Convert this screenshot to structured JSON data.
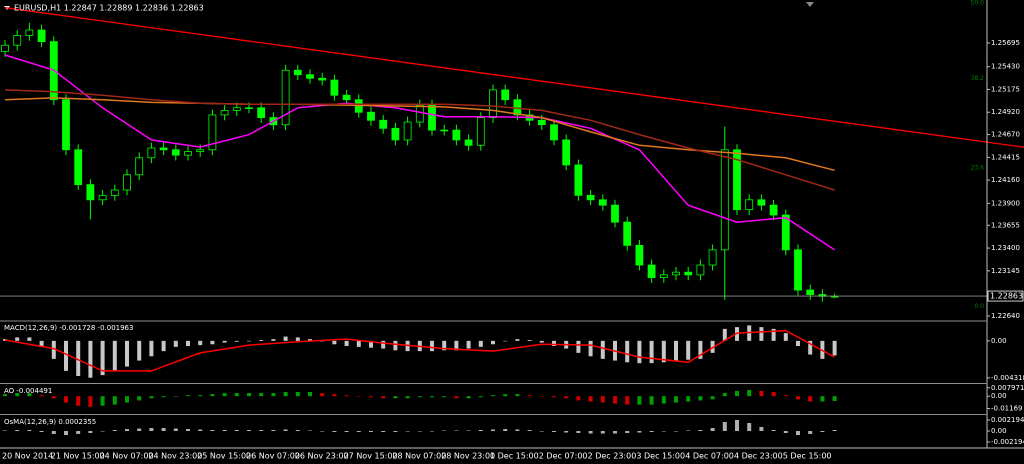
{
  "chart_data": [
    {
      "type": "candlestick",
      "title": "EURUSD,H1  1.22847 1.22889 1.22836 1.22863",
      "categories": [
        "20 Nov 2014",
        null,
        null,
        null,
        "21 Nov 15:00",
        null,
        null,
        null,
        "24 Nov 07:00",
        null,
        null,
        null,
        "24 Nov 23:00",
        null,
        null,
        null,
        "25 Nov 15:00",
        null,
        null,
        null,
        "26 Nov 07:00",
        null,
        null,
        null,
        "26 Nov 23:00",
        null,
        null,
        null,
        "27 Nov 15:00",
        null,
        null,
        null,
        "28 Nov 07:00",
        null,
        null,
        null,
        "28 Nov 23:00",
        null,
        null,
        null,
        "1 Dec 15:00",
        null,
        null,
        null,
        "2 Dec 07:00",
        null,
        null,
        null,
        "2 Dec 23:00",
        null,
        null,
        null,
        "3 Dec 15:00",
        null,
        null,
        null,
        "4 Dec 07:00",
        null,
        null,
        null,
        "4 Dec 23:00",
        null,
        null,
        null,
        "5 Dec 15:00",
        null,
        null,
        null,
        null
      ],
      "open": [
        1.256,
        1.2567,
        1.2578,
        1.2584,
        1.2571,
        1.2506,
        1.245,
        1.2411,
        1.2394,
        1.2399,
        1.2405,
        1.2422,
        1.2441,
        1.2452,
        1.245,
        1.2444,
        1.2448,
        1.245,
        1.2489,
        1.2494,
        1.2497,
        1.2497,
        1.2486,
        1.2478,
        1.2539,
        1.2534,
        1.253,
        1.2528,
        1.2511,
        1.2506,
        1.2492,
        1.2483,
        1.2474,
        1.2461,
        1.2481,
        1.25,
        1.2472,
        1.2472,
        1.2461,
        1.2455,
        1.2486,
        1.2517,
        1.2506,
        1.2489,
        1.2483,
        1.2478,
        1.2461,
        1.2433,
        1.2399,
        1.2394,
        1.2388,
        1.2369,
        1.2343,
        1.2321,
        1.2307,
        1.231,
        1.2313,
        1.231,
        1.2321,
        1.2338,
        1.245,
        1.2383,
        1.2394,
        1.2388,
        1.2377,
        1.2338,
        1.2293,
        1.2288,
        1.2286
      ],
      "high": [
        1.2573,
        1.2584,
        1.2592,
        1.259,
        1.2577,
        1.2512,
        1.2456,
        1.2417,
        1.2405,
        1.2411,
        1.2428,
        1.2447,
        1.2458,
        1.2458,
        1.2456,
        1.2454,
        1.2456,
        1.2495,
        1.25,
        1.2503,
        1.2503,
        1.2503,
        1.2492,
        1.2545,
        1.2545,
        1.254,
        1.2536,
        1.2534,
        1.2517,
        1.2512,
        1.2498,
        1.2489,
        1.248,
        1.2487,
        1.2506,
        1.2506,
        1.2478,
        1.2478,
        1.2467,
        1.2492,
        1.2523,
        1.2523,
        1.2512,
        1.2495,
        1.2489,
        1.2484,
        1.2467,
        1.2439,
        1.2405,
        1.24,
        1.2394,
        1.2375,
        1.2349,
        1.2327,
        1.2316,
        1.2319,
        1.2319,
        1.2327,
        1.2344,
        1.2476,
        1.2456,
        1.24,
        1.24,
        1.2394,
        1.2383,
        1.2344,
        1.2299,
        1.2294,
        1.2289
      ],
      "low": [
        1.2554,
        1.2561,
        1.2572,
        1.2565,
        1.25,
        1.2444,
        1.2405,
        1.2372,
        1.2388,
        1.2393,
        1.2399,
        1.2416,
        1.2435,
        1.2444,
        1.2438,
        1.2438,
        1.2442,
        1.2444,
        1.2483,
        1.2488,
        1.2491,
        1.248,
        1.2472,
        1.2472,
        1.2528,
        1.2524,
        1.2522,
        1.2505,
        1.25,
        1.2486,
        1.2477,
        1.2468,
        1.2455,
        1.2455,
        1.2475,
        1.2466,
        1.2466,
        1.2455,
        1.2449,
        1.2449,
        1.248,
        1.25,
        1.2483,
        1.2477,
        1.2472,
        1.2455,
        1.2427,
        1.2393,
        1.2388,
        1.2382,
        1.2363,
        1.2337,
        1.2315,
        1.2301,
        1.2301,
        1.2304,
        1.2304,
        1.2304,
        1.2315,
        1.2282,
        1.2377,
        1.2377,
        1.2382,
        1.2371,
        1.2332,
        1.2287,
        1.2282,
        1.228,
        1.2284
      ],
      "close": [
        1.2567,
        1.2578,
        1.2584,
        1.2571,
        1.2506,
        1.245,
        1.2411,
        1.2394,
        1.2399,
        1.2405,
        1.2422,
        1.2441,
        1.2452,
        1.245,
        1.2444,
        1.2448,
        1.245,
        1.2489,
        1.2494,
        1.2497,
        1.2497,
        1.2486,
        1.2478,
        1.2539,
        1.2534,
        1.253,
        1.2528,
        1.2511,
        1.2506,
        1.2492,
        1.2483,
        1.2474,
        1.2461,
        1.2481,
        1.25,
        1.2472,
        1.2472,
        1.2461,
        1.2455,
        1.2486,
        1.2517,
        1.2506,
        1.2489,
        1.2483,
        1.2478,
        1.2461,
        1.2433,
        1.2399,
        1.2394,
        1.2388,
        1.2369,
        1.2343,
        1.2321,
        1.2307,
        1.231,
        1.2313,
        1.231,
        1.2321,
        1.2338,
        1.245,
        1.2383,
        1.2394,
        1.2388,
        1.2377,
        1.2338,
        1.2293,
        1.2288,
        1.2286,
        1.2286
      ],
      "color": "#00ff00",
      "lines": [
        {
          "color": "#ff00ff",
          "x": [
            0,
            4,
            8,
            12,
            16,
            20,
            24,
            28,
            32,
            36,
            40,
            44,
            48,
            52,
            56,
            60,
            64,
            68
          ],
          "values": [
            1.2556,
            1.2539,
            1.2497,
            1.2461,
            1.2453,
            1.2467,
            1.2497,
            1.2502,
            1.2497,
            1.2487,
            1.2487,
            1.2486,
            1.2474,
            1.245,
            1.2388,
            1.2369,
            1.2374,
            1.2338
          ]
        },
        {
          "color": "#e07820",
          "x": [
            0,
            4,
            8,
            12,
            16,
            20,
            24,
            28,
            32,
            36,
            40,
            44,
            48,
            52,
            56,
            60,
            64,
            68
          ],
          "values": [
            1.2506,
            1.2508,
            1.2506,
            1.2503,
            1.2502,
            1.2501,
            1.2501,
            1.25,
            1.2499,
            1.2498,
            1.2494,
            1.2486,
            1.247,
            1.2455,
            1.245,
            1.2446,
            1.2441,
            1.2427
          ]
        },
        {
          "color": "#a02818",
          "x": [
            0,
            4,
            8,
            12,
            16,
            20,
            24,
            28,
            32,
            36,
            40,
            44,
            48,
            52,
            56,
            60,
            64,
            68
          ],
          "values": [
            1.2517,
            1.2515,
            1.2511,
            1.2506,
            1.2502,
            1.2501,
            1.2501,
            1.2501,
            1.2501,
            1.2501,
            1.2499,
            1.2494,
            1.2483,
            1.2467,
            1.2452,
            1.2439,
            1.2422,
            1.2405
          ]
        }
      ],
      "trendline": {
        "color": "#ff0000",
        "x": [
          0,
          84
        ],
        "values": [
          1.2609,
          1.2452
        ]
      },
      "levels": [
        {
          "label": "50.0",
          "value": 1.261
        },
        {
          "label": "38.2",
          "value": 1.2525
        },
        {
          "label": "23.6",
          "value": 1.2425
        },
        {
          "label": "0.0",
          "value": 1.227
        }
      ],
      "level_color": "#008000",
      "last_price": 1.22863,
      "ylim": [
        1.22595,
        1.26176
      ],
      "yticks": [
        1.25695,
        {
          "value": 1.2543,
          "label": "1.25430"
        },
        1.25175,
        {
          "value": 1.2492,
          "label": "1.24920"
        },
        {
          "value": 1.2467,
          "label": "1.24670"
        },
        1.24415,
        {
          "value": 1.2416,
          "label": "1.24160"
        },
        {
          "value": 1.239,
          "label": "1.23900"
        },
        1.23655,
        {
          "value": 1.234,
          "label": "1.23400"
        },
        1.23145,
        {
          "value": 1.2264,
          "label": "1.22640"
        }
      ],
      "grid": true
    },
    {
      "type": "bar",
      "title": "MACD(12,26,9) -0.001728 -0.001963",
      "values": [
        0.0002,
        0.0004,
        0.0004,
        -0.0006,
        -0.0021,
        -0.0035,
        -0.0041,
        -0.0043,
        -0.004,
        -0.0035,
        -0.003,
        -0.0023,
        -0.0018,
        -0.0012,
        -0.0007,
        -0.0006,
        -0.0005,
        -0.0004,
        -0.0002,
        -0.0001,
        0,
        0.0001,
        0.0002,
        0.0005,
        0.0004,
        0.0002,
        0,
        -0.0004,
        -0.0006,
        -0.0007,
        -0.0008,
        -0.0009,
        -0.0011,
        -0.0012,
        -0.0012,
        -0.0012,
        -0.0011,
        -0.0011,
        -0.0009,
        -0.0007,
        -0.0004,
        0,
        0.0002,
        0.0001,
        -0.0002,
        -0.0006,
        -0.0009,
        -0.0014,
        -0.0018,
        -0.0021,
        -0.0023,
        -0.0025,
        -0.0026,
        -0.0026,
        -0.0025,
        -0.0023,
        -0.0022,
        -0.0021,
        -0.0014,
        0.0014,
        0.0016,
        0.0018,
        0.0016,
        0.0014,
        0.0009,
        -0.0006,
        -0.0016,
        -0.0021,
        -0.0017
      ],
      "color": "#c8c8c8",
      "signal": {
        "color": "#ff0000",
        "x": [
          0,
          4,
          8,
          12,
          16,
          20,
          24,
          28,
          32,
          36,
          40,
          44,
          48,
          52,
          56,
          60,
          64,
          68
        ],
        "values": [
          0.0001,
          -0.0009,
          -0.0035,
          -0.0035,
          -0.0014,
          -0.0005,
          -0.0001,
          0.0002,
          -0.0004,
          -0.0009,
          -0.0012,
          -0.0004,
          -0.0005,
          -0.0019,
          -0.0025,
          0.0009,
          0.0012,
          -0.0019
        ]
      },
      "ylim": [
        -0.0048,
        0.0022
      ],
      "yticks": [
        {
          "value": 0,
          "label": "0.00"
        },
        -0.004318
      ]
    },
    {
      "type": "bar",
      "title": "AO -0.004491",
      "values": [
        0.002,
        0.003,
        0.003,
        0.001,
        -0.002,
        -0.006,
        -0.009,
        -0.01,
        -0.009,
        -0.008,
        -0.006,
        -0.004,
        -0.002,
        -0.001,
        0,
        0.001,
        0.001,
        0.002,
        0.003,
        0.003,
        0.003,
        0.003,
        0.003,
        0.004,
        0.004,
        0.004,
        0.003,
        0.002,
        0.001,
        0,
        -0.001,
        -0.002,
        -0.002,
        -0.002,
        -0.001,
        -0.001,
        -0.001,
        -0.002,
        -0.002,
        -0.001,
        0.001,
        0.002,
        0.002,
        0.001,
        0,
        -0.001,
        -0.002,
        -0.004,
        -0.005,
        -0.006,
        -0.007,
        -0.008,
        -0.008,
        -0.008,
        -0.007,
        -0.006,
        -0.005,
        -0.004,
        -0.003,
        0.003,
        0.005,
        0.006,
        0.005,
        0.004,
        0.001,
        -0.003,
        -0.005,
        -0.005,
        -0.0045
      ],
      "up_color": "#00a000",
      "down_color": "#d00000",
      "ylim": [
        -0.0159,
        0.0106
      ],
      "yticks": [
        0.007971,
        {
          "value": 0,
          "label": "0.00"
        },
        -0.01169
      ]
    },
    {
      "type": "bar",
      "title": "OsMA(12,26,9) 0.0002355",
      "values": [
        0.0001,
        0.0002,
        0.0002,
        -0.0002,
        -0.0006,
        -0.0008,
        -0.0006,
        -0.0004,
        -0.0001,
        0.0002,
        0.0004,
        0.0005,
        0.0006,
        0.0006,
        0.0005,
        0.0004,
        0.0003,
        0.0002,
        0.0002,
        0.0002,
        0.0002,
        0.0002,
        0.0002,
        0.0003,
        0.0002,
        0.0001,
        -0.0001,
        -0.0002,
        -0.0002,
        -0.0002,
        -0.0002,
        -0.0002,
        -0.0002,
        -0.0001,
        0,
        0,
        0.0001,
        0.0001,
        0.0001,
        0.0002,
        0.0003,
        0.0004,
        0.0003,
        0.0002,
        0,
        -0.0002,
        -0.0003,
        -0.0004,
        -0.0005,
        -0.0005,
        -0.0005,
        -0.0004,
        -0.0003,
        -0.0002,
        -0.0001,
        0,
        0.0001,
        0.0002,
        0.0006,
        0.0018,
        0.0022,
        0.0016,
        0.0008,
        0.0002,
        -0.0004,
        -0.0008,
        -0.0006,
        -0.0002,
        0.0002
      ],
      "color": "#b0b0b0",
      "ylim": [
        -0.0032,
        0.003
      ],
      "yticks": [
        0.002194,
        {
          "value": 0,
          "label": "0.00"
        },
        -0.002194
      ]
    }
  ]
}
